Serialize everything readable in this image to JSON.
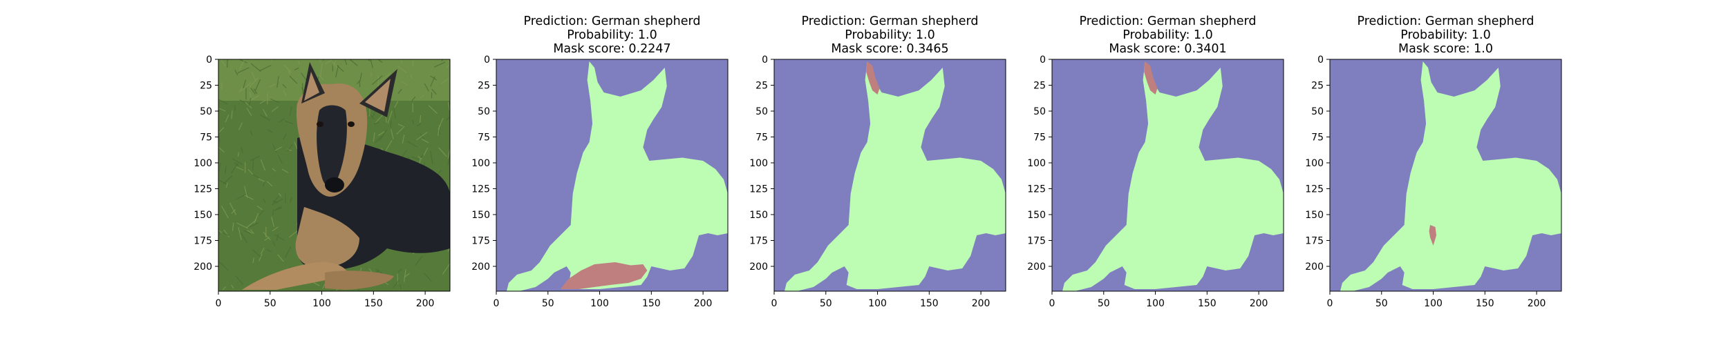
{
  "figure": {
    "panel_count": 5
  },
  "chart_data": [
    {
      "type": "image",
      "panel": 1,
      "title": [],
      "xlim": [
        0,
        224
      ],
      "ylim": [
        224,
        0
      ],
      "xticks": [
        0,
        50,
        100,
        150,
        200
      ],
      "yticks": [
        0,
        25,
        50,
        75,
        100,
        125,
        150,
        175,
        200
      ],
      "content": "photo of german shepherd puppy lying on grass"
    },
    {
      "type": "segmentation_mask",
      "panel": 2,
      "title": [
        "Prediction: German shepherd",
        "Probability: 1.0",
        "Mask score: 0.2247"
      ],
      "prediction": "German shepherd",
      "probability": 1.0,
      "mask_score": 0.2247,
      "highlighted_region": "front paws",
      "xlim": [
        0,
        224
      ],
      "ylim": [
        224,
        0
      ],
      "xticks": [
        0,
        50,
        100,
        150,
        200
      ],
      "yticks": [
        0,
        25,
        50,
        75,
        100,
        125,
        150,
        175,
        200
      ]
    },
    {
      "type": "segmentation_mask",
      "panel": 3,
      "title": [
        "Prediction: German shepherd",
        "Probability: 1.0",
        "Mask score: 0.3465"
      ],
      "prediction": "German shepherd",
      "probability": 1.0,
      "mask_score": 0.3465,
      "highlighted_region": "left ear",
      "xlim": [
        0,
        224
      ],
      "ylim": [
        224,
        0
      ],
      "xticks": [
        0,
        50,
        100,
        150,
        200
      ],
      "yticks": [
        0,
        25,
        50,
        75,
        100,
        125,
        150,
        175,
        200
      ]
    },
    {
      "type": "segmentation_mask",
      "panel": 4,
      "title": [
        "Prediction: German shepherd",
        "Probability: 1.0",
        "Mask score: 0.3401"
      ],
      "prediction": "German shepherd",
      "probability": 1.0,
      "mask_score": 0.3401,
      "highlighted_region": "left ear",
      "xlim": [
        0,
        224
      ],
      "ylim": [
        224,
        0
      ],
      "xticks": [
        0,
        50,
        100,
        150,
        200
      ],
      "yticks": [
        0,
        25,
        50,
        75,
        100,
        125,
        150,
        175,
        200
      ]
    },
    {
      "type": "segmentation_mask",
      "panel": 5,
      "title": [
        "Prediction: German shepherd",
        "Probability: 1.0",
        "Mask score: 1.0"
      ],
      "prediction": "German shepherd",
      "probability": 1.0,
      "mask_score": 1.0,
      "highlighted_region": "chest",
      "xlim": [
        0,
        224
      ],
      "ylim": [
        224,
        0
      ],
      "xticks": [
        0,
        50,
        100,
        150,
        200
      ],
      "yticks": [
        0,
        25,
        50,
        75,
        100,
        125,
        150,
        175,
        200
      ]
    }
  ],
  "colors": {
    "background_mask": "#7f7fc0",
    "dog_mask": "#bdfcb3",
    "highlight_mask": "#bf7f7f",
    "grass_dark": "#4a6b32",
    "grass_light": "#7e9a52",
    "dog_black": "#20232b",
    "dog_tan": "#a98a62",
    "axis": "#000000"
  }
}
